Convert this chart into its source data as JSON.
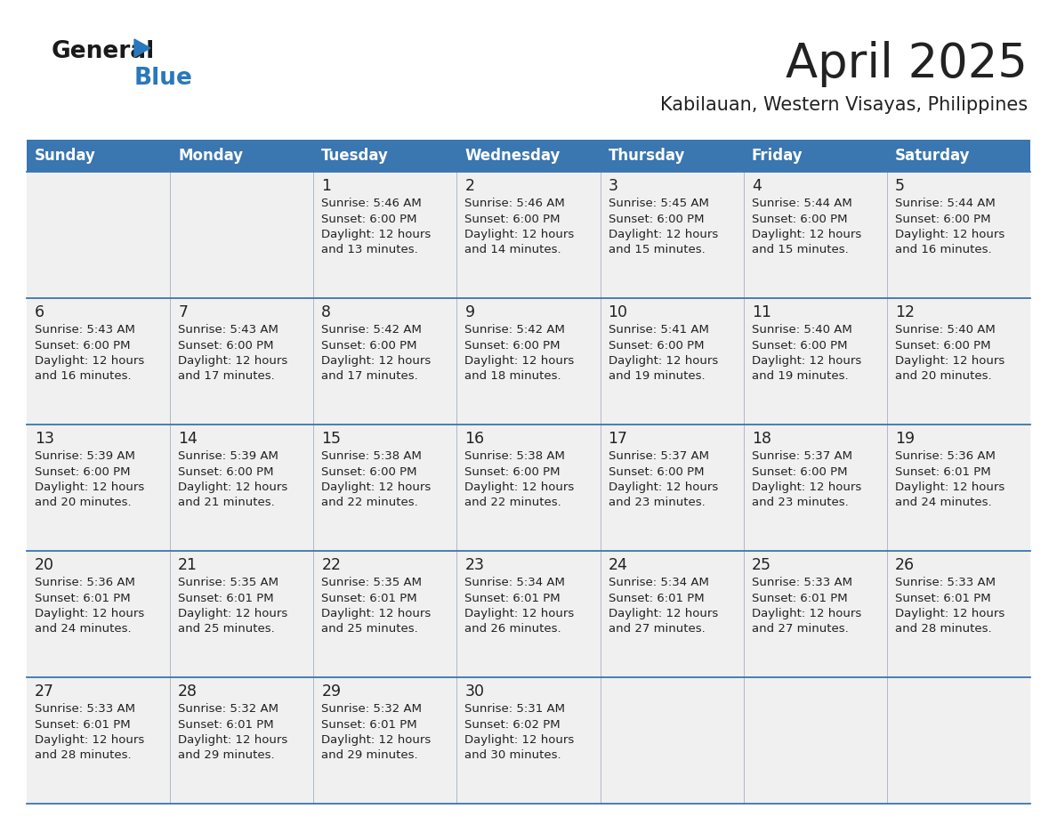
{
  "title": "April 2025",
  "subtitle": "Kabilauan, Western Visayas, Philippines",
  "days_of_week": [
    "Sunday",
    "Monday",
    "Tuesday",
    "Wednesday",
    "Thursday",
    "Friday",
    "Saturday"
  ],
  "header_bg": "#3a76b0",
  "header_text": "#ffffff",
  "row_bg": "#f0f0f0",
  "cell_text_color": "#222222",
  "day_number_color": "#222222",
  "grid_line_color": "#3a76b0",
  "title_color": "#222222",
  "subtitle_color": "#222222",
  "logo_general_color": "#1a1a1a",
  "logo_blue_color": "#2878be",
  "weeks": [
    [
      {
        "day": "",
        "lines": []
      },
      {
        "day": "",
        "lines": []
      },
      {
        "day": "1",
        "lines": [
          "Sunrise: 5:46 AM",
          "Sunset: 6:00 PM",
          "Daylight: 12 hours",
          "and 13 minutes."
        ]
      },
      {
        "day": "2",
        "lines": [
          "Sunrise: 5:46 AM",
          "Sunset: 6:00 PM",
          "Daylight: 12 hours",
          "and 14 minutes."
        ]
      },
      {
        "day": "3",
        "lines": [
          "Sunrise: 5:45 AM",
          "Sunset: 6:00 PM",
          "Daylight: 12 hours",
          "and 15 minutes."
        ]
      },
      {
        "day": "4",
        "lines": [
          "Sunrise: 5:44 AM",
          "Sunset: 6:00 PM",
          "Daylight: 12 hours",
          "and 15 minutes."
        ]
      },
      {
        "day": "5",
        "lines": [
          "Sunrise: 5:44 AM",
          "Sunset: 6:00 PM",
          "Daylight: 12 hours",
          "and 16 minutes."
        ]
      }
    ],
    [
      {
        "day": "6",
        "lines": [
          "Sunrise: 5:43 AM",
          "Sunset: 6:00 PM",
          "Daylight: 12 hours",
          "and 16 minutes."
        ]
      },
      {
        "day": "7",
        "lines": [
          "Sunrise: 5:43 AM",
          "Sunset: 6:00 PM",
          "Daylight: 12 hours",
          "and 17 minutes."
        ]
      },
      {
        "day": "8",
        "lines": [
          "Sunrise: 5:42 AM",
          "Sunset: 6:00 PM",
          "Daylight: 12 hours",
          "and 17 minutes."
        ]
      },
      {
        "day": "9",
        "lines": [
          "Sunrise: 5:42 AM",
          "Sunset: 6:00 PM",
          "Daylight: 12 hours",
          "and 18 minutes."
        ]
      },
      {
        "day": "10",
        "lines": [
          "Sunrise: 5:41 AM",
          "Sunset: 6:00 PM",
          "Daylight: 12 hours",
          "and 19 minutes."
        ]
      },
      {
        "day": "11",
        "lines": [
          "Sunrise: 5:40 AM",
          "Sunset: 6:00 PM",
          "Daylight: 12 hours",
          "and 19 minutes."
        ]
      },
      {
        "day": "12",
        "lines": [
          "Sunrise: 5:40 AM",
          "Sunset: 6:00 PM",
          "Daylight: 12 hours",
          "and 20 minutes."
        ]
      }
    ],
    [
      {
        "day": "13",
        "lines": [
          "Sunrise: 5:39 AM",
          "Sunset: 6:00 PM",
          "Daylight: 12 hours",
          "and 20 minutes."
        ]
      },
      {
        "day": "14",
        "lines": [
          "Sunrise: 5:39 AM",
          "Sunset: 6:00 PM",
          "Daylight: 12 hours",
          "and 21 minutes."
        ]
      },
      {
        "day": "15",
        "lines": [
          "Sunrise: 5:38 AM",
          "Sunset: 6:00 PM",
          "Daylight: 12 hours",
          "and 22 minutes."
        ]
      },
      {
        "day": "16",
        "lines": [
          "Sunrise: 5:38 AM",
          "Sunset: 6:00 PM",
          "Daylight: 12 hours",
          "and 22 minutes."
        ]
      },
      {
        "day": "17",
        "lines": [
          "Sunrise: 5:37 AM",
          "Sunset: 6:00 PM",
          "Daylight: 12 hours",
          "and 23 minutes."
        ]
      },
      {
        "day": "18",
        "lines": [
          "Sunrise: 5:37 AM",
          "Sunset: 6:00 PM",
          "Daylight: 12 hours",
          "and 23 minutes."
        ]
      },
      {
        "day": "19",
        "lines": [
          "Sunrise: 5:36 AM",
          "Sunset: 6:01 PM",
          "Daylight: 12 hours",
          "and 24 minutes."
        ]
      }
    ],
    [
      {
        "day": "20",
        "lines": [
          "Sunrise: 5:36 AM",
          "Sunset: 6:01 PM",
          "Daylight: 12 hours",
          "and 24 minutes."
        ]
      },
      {
        "day": "21",
        "lines": [
          "Sunrise: 5:35 AM",
          "Sunset: 6:01 PM",
          "Daylight: 12 hours",
          "and 25 minutes."
        ]
      },
      {
        "day": "22",
        "lines": [
          "Sunrise: 5:35 AM",
          "Sunset: 6:01 PM",
          "Daylight: 12 hours",
          "and 25 minutes."
        ]
      },
      {
        "day": "23",
        "lines": [
          "Sunrise: 5:34 AM",
          "Sunset: 6:01 PM",
          "Daylight: 12 hours",
          "and 26 minutes."
        ]
      },
      {
        "day": "24",
        "lines": [
          "Sunrise: 5:34 AM",
          "Sunset: 6:01 PM",
          "Daylight: 12 hours",
          "and 27 minutes."
        ]
      },
      {
        "day": "25",
        "lines": [
          "Sunrise: 5:33 AM",
          "Sunset: 6:01 PM",
          "Daylight: 12 hours",
          "and 27 minutes."
        ]
      },
      {
        "day": "26",
        "lines": [
          "Sunrise: 5:33 AM",
          "Sunset: 6:01 PM",
          "Daylight: 12 hours",
          "and 28 minutes."
        ]
      }
    ],
    [
      {
        "day": "27",
        "lines": [
          "Sunrise: 5:33 AM",
          "Sunset: 6:01 PM",
          "Daylight: 12 hours",
          "and 28 minutes."
        ]
      },
      {
        "day": "28",
        "lines": [
          "Sunrise: 5:32 AM",
          "Sunset: 6:01 PM",
          "Daylight: 12 hours",
          "and 29 minutes."
        ]
      },
      {
        "day": "29",
        "lines": [
          "Sunrise: 5:32 AM",
          "Sunset: 6:01 PM",
          "Daylight: 12 hours",
          "and 29 minutes."
        ]
      },
      {
        "day": "30",
        "lines": [
          "Sunrise: 5:31 AM",
          "Sunset: 6:02 PM",
          "Daylight: 12 hours",
          "and 30 minutes."
        ]
      },
      {
        "day": "",
        "lines": []
      },
      {
        "day": "",
        "lines": []
      },
      {
        "day": "",
        "lines": []
      }
    ]
  ]
}
